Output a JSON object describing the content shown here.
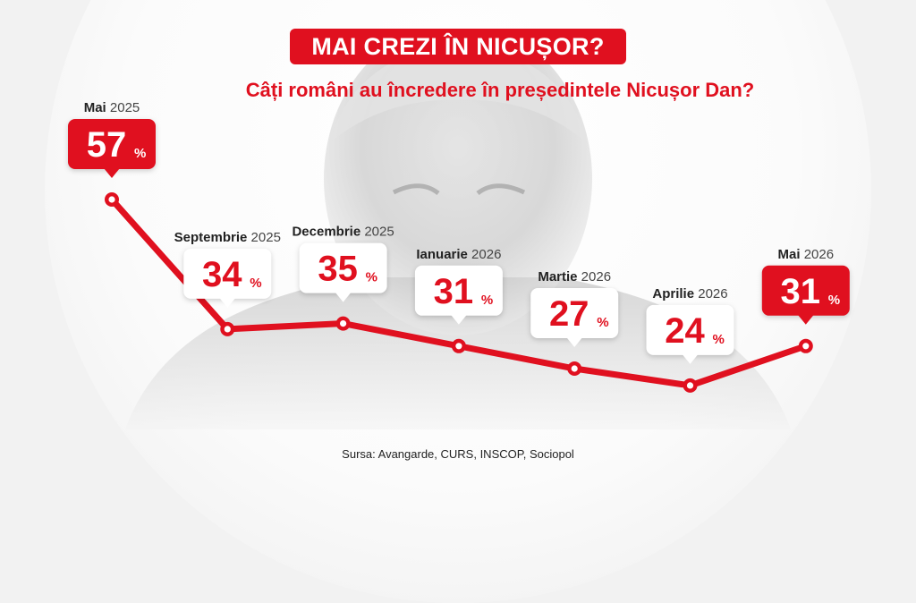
{
  "header": {
    "title": "MAI CREZI ÎN NICUȘOR?",
    "subtitle": "Câți români au încredere în președintele Nicușor Dan?"
  },
  "footer": {
    "source": "Sursa: Avangarde, CURS, INSCOP, Sociopol"
  },
  "colors": {
    "accent": "#e0101f",
    "callout_plain": "#ffffff",
    "text_dark": "#222222"
  },
  "chart_data": {
    "type": "line",
    "title": "Câți români au încredere în președintele Nicușor Dan?",
    "xlabel": "",
    "ylabel": "",
    "ylim": [
      20,
      60
    ],
    "unit": "%",
    "grid": false,
    "series": [
      {
        "points": [
          {
            "month": "Mai",
            "year": "2025",
            "value": 57,
            "label": "57",
            "highlight": true
          },
          {
            "month": "Septembrie",
            "year": "2025",
            "value": 34,
            "label": "34",
            "highlight": false
          },
          {
            "month": "Decembrie",
            "year": "2025",
            "value": 35,
            "label": "35",
            "highlight": false
          },
          {
            "month": "Ianuarie",
            "year": "2026",
            "value": 31,
            "label": "31",
            "highlight": false
          },
          {
            "month": "Martie",
            "year": "2026",
            "value": 27,
            "label": "27",
            "highlight": false
          },
          {
            "month": "Aprilie",
            "year": "2026",
            "value": 24,
            "label": "24",
            "highlight": false
          },
          {
            "month": "Mai",
            "year": "2026",
            "value": 31,
            "label": "31",
            "highlight": true
          }
        ]
      }
    ]
  }
}
